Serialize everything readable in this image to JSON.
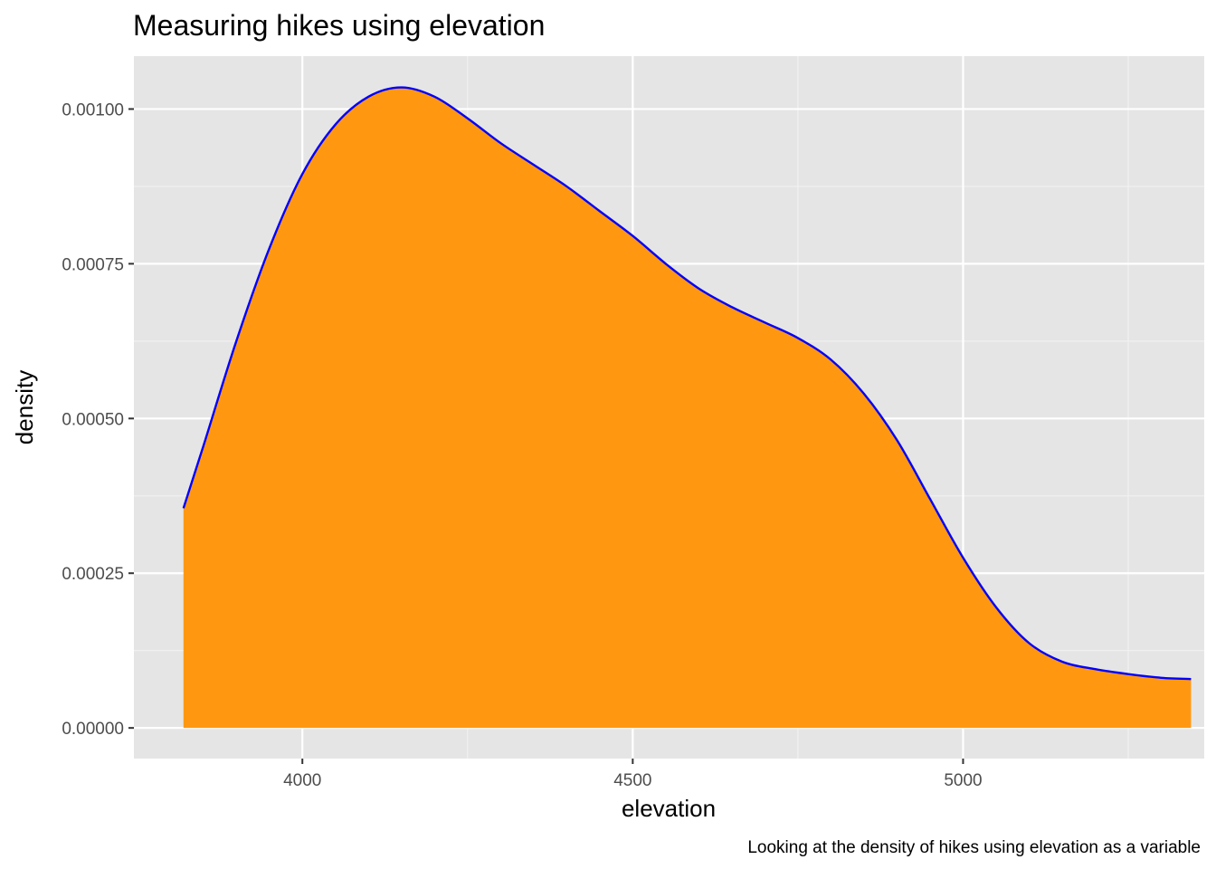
{
  "chart_data": {
    "type": "area",
    "title": "Measuring hikes using elevation",
    "xlabel": "elevation",
    "ylabel": "density",
    "caption": "Looking at the density of hikes using elevation as a variable",
    "xlim": [
      3745,
      5365
    ],
    "ylim": [
      -4.95e-05,
      0.0010855
    ],
    "x_ticks": [
      {
        "value": 4000,
        "label": "4000"
      },
      {
        "value": 4500,
        "label": "4500"
      },
      {
        "value": 5000,
        "label": "5000"
      }
    ],
    "x_minor_ticks": [
      4250,
      4750,
      5250
    ],
    "y_ticks": [
      {
        "value": 0,
        "label": "0.00000"
      },
      {
        "value": 0.00025,
        "label": "0.00025"
      },
      {
        "value": 0.0005,
        "label": "0.00050"
      },
      {
        "value": 0.00075,
        "label": "0.00075"
      },
      {
        "value": 0.001,
        "label": "0.00100"
      }
    ],
    "y_minor_ticks": [
      0.000125,
      0.000375,
      0.000625,
      0.000875
    ],
    "grid": true,
    "series": [
      {
        "fill": "#FF9810",
        "line": "#0000FF",
        "x": [
          3820,
          3850,
          3900,
          3950,
          4000,
          4050,
          4100,
          4150,
          4200,
          4250,
          4300,
          4350,
          4400,
          4450,
          4500,
          4550,
          4600,
          4650,
          4700,
          4750,
          4800,
          4850,
          4900,
          4950,
          5000,
          5050,
          5100,
          5150,
          5200,
          5250,
          5300,
          5345
        ],
        "y": [
          0.000355,
          0.000455,
          0.000625,
          0.000775,
          0.000895,
          0.000975,
          0.00102,
          0.001035,
          0.00102,
          0.000985,
          0.000945,
          0.00091,
          0.000875,
          0.000835,
          0.000795,
          0.00075,
          0.00071,
          0.00068,
          0.000655,
          0.00063,
          0.000595,
          0.00054,
          0.000465,
          0.00037,
          0.000275,
          0.000195,
          0.000137,
          0.000107,
          9.5e-05,
          8.7e-05,
          8.1e-05,
          7.9e-05
        ]
      }
    ]
  }
}
